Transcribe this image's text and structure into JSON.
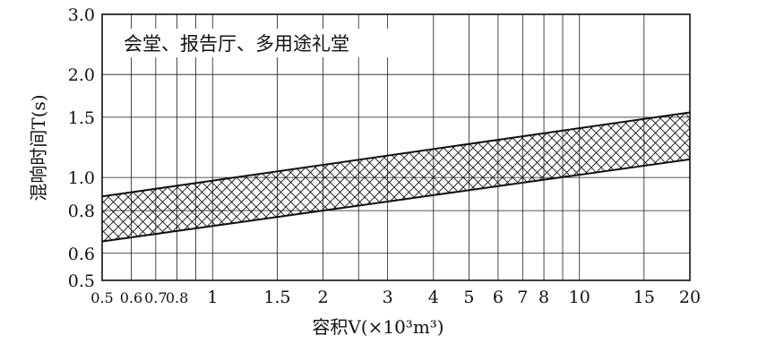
{
  "chart_data": {
    "type": "area",
    "title": "会堂、报告厅、多用途礼堂",
    "xlabel": "容积V(×10³m³)",
    "ylabel": "混响时间T(s)",
    "x_scale": "log",
    "y_scale": "log",
    "xlim": [
      0.5,
      20
    ],
    "ylim": [
      0.5,
      3.0
    ],
    "grid": true,
    "x_ticks": [
      0.5,
      0.6,
      0.7,
      0.8,
      1,
      1.5,
      2,
      3,
      4,
      5,
      6,
      7,
      8,
      10,
      15,
      20
    ],
    "x_tick_labels": [
      "0.5",
      "0.6",
      "0.7",
      "0.8",
      "1",
      "1.5",
      "2",
      "3",
      "4",
      "5",
      "6",
      "7",
      "8",
      "10",
      "15",
      "20"
    ],
    "x_gridlines": [
      0.5,
      0.6,
      0.7,
      0.8,
      0.9,
      1,
      1.5,
      2,
      2.5,
      3,
      4,
      5,
      6,
      7,
      8,
      9,
      10,
      15,
      20
    ],
    "y_ticks": [
      0.5,
      0.6,
      0.8,
      1.0,
      1.5,
      2.0,
      3.0
    ],
    "y_tick_labels": [
      "0.5",
      "0.6",
      "0.8",
      "1.0",
      "1.5",
      "2.0",
      "3.0"
    ],
    "y_gridlines": [
      0.6,
      0.8,
      1.0,
      1.5,
      2.0
    ],
    "series": [
      {
        "x": [
          0.5,
          20
        ],
        "values": [
          0.88,
          1.55
        ]
      },
      {
        "x": [
          0.5,
          20
        ],
        "values": [
          0.65,
          1.13
        ]
      }
    ],
    "fill_between": true,
    "fill_pattern": "crosshatch"
  }
}
